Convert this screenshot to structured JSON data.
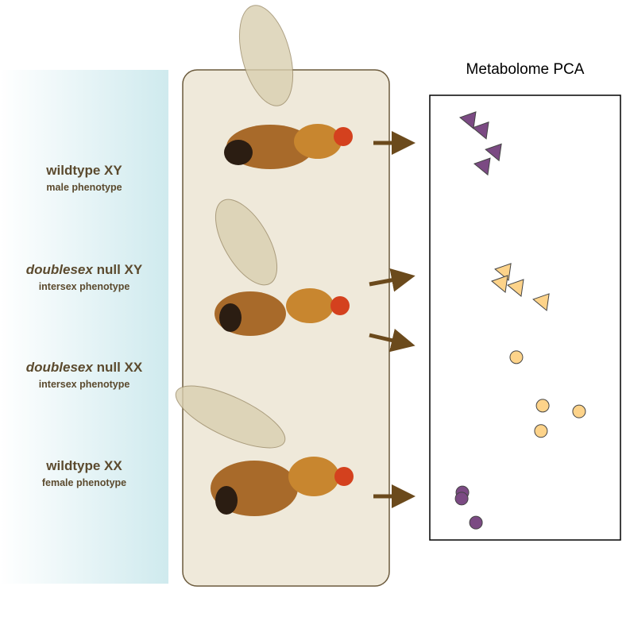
{
  "labels": [
    {
      "title": "wildtype XY",
      "subtitle": "male phenotype"
    },
    {
      "emphasis": "doublesex",
      "title": "null XY",
      "subtitle": "intersex phenotype"
    },
    {
      "emphasis": "doublesex",
      "title": "null XX",
      "subtitle": "intersex phenotype"
    },
    {
      "title": "wildtype XX",
      "subtitle": "female phenotype"
    }
  ],
  "chart_data": {
    "type": "scatter",
    "title": "Metabolome PCA",
    "xlim": [
      0,
      100
    ],
    "ylim": [
      0,
      100
    ],
    "series": [
      {
        "color": "#7b4a83",
        "marker": "triangle",
        "x": [
          20.4,
          27.1,
          33.8,
          27.9
        ],
        "values": [
          94.3,
          92.0,
          87.1,
          83.9
        ]
      },
      {
        "color": "#fdd38a",
        "marker": "triangle",
        "x": [
          38.8,
          37.1,
          45.4,
          58.8
        ],
        "values": [
          60.2,
          57.5,
          56.6,
          53.4
        ]
      },
      {
        "color": "#fdd38a",
        "marker": "circle",
        "x": [
          45.4,
          59.2,
          78.3,
          58.3
        ],
        "values": [
          41.1,
          30.2,
          28.9,
          24.5
        ]
      },
      {
        "color": "#7b4a83",
        "marker": "circle",
        "x": [
          17.1,
          16.7,
          24.2
        ],
        "values": [
          10.7,
          9.3,
          3.9
        ]
      }
    ]
  }
}
